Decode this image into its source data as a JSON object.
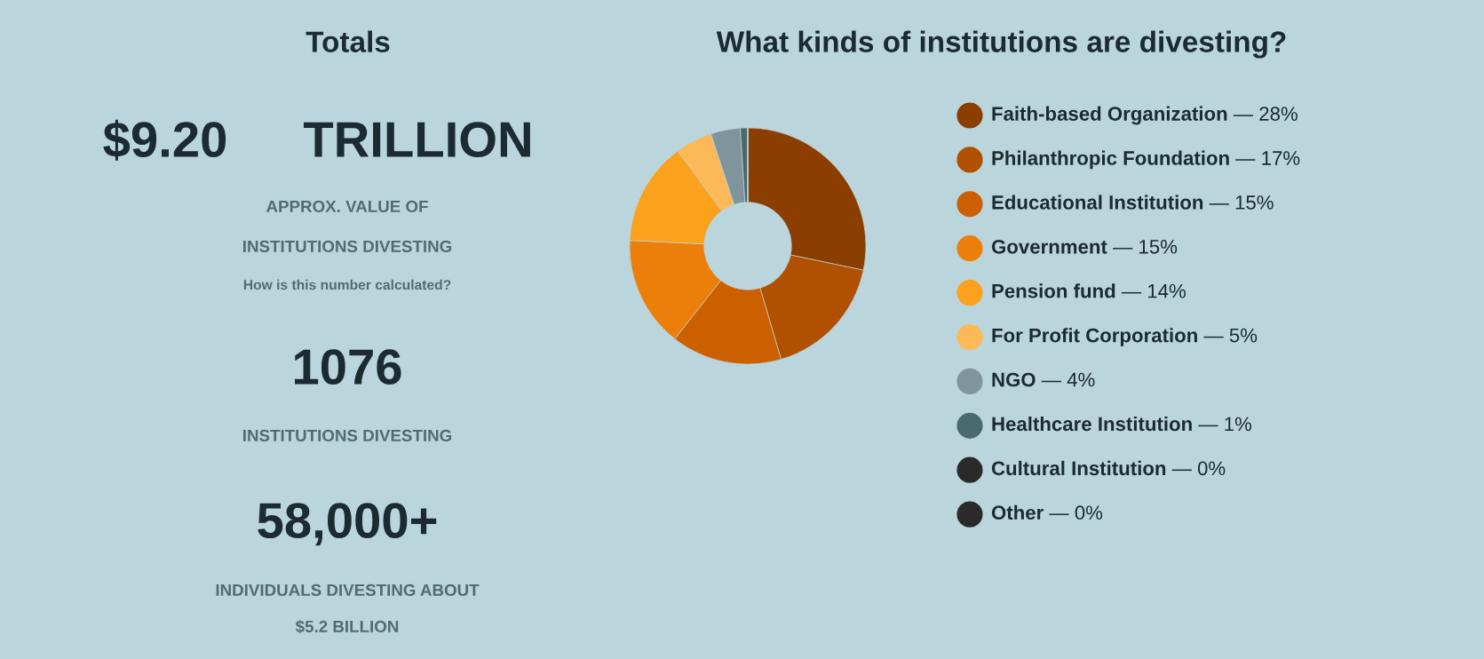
{
  "chart_data": [
    {
      "type": "other",
      "title": "Totals",
      "annotations": [
        "$9.20",
        "TRILLION",
        "APPROX. VALUE OF",
        "INSTITUTIONS DIVESTING",
        "How is this number calculated?",
        "1076",
        "INSTITUTIONS DIVESTING",
        "58,000+",
        "INDIVIDUALS DIVESTING ABOUT",
        "$5.2 BILLION"
      ]
    },
    {
      "type": "donut",
      "title": "What kinds of institutions are divesting?",
      "categories": [
        "Faith-based Organization",
        "Philanthropic Foundation",
        "Educational Institution",
        "Government",
        "Pension fund",
        "For Profit Corporation",
        "NGO",
        "Healthcare Institution",
        "Cultural Institution",
        "Other"
      ],
      "values": [
        28,
        17,
        15,
        15,
        14,
        5,
        4,
        1,
        0,
        0
      ],
      "value_labels": [
        "— 28%",
        "— 17%",
        "— 15%",
        "— 15%",
        "— 14%",
        "— 5%",
        "— 4%",
        "— 1%",
        "— 0%",
        "— 0%"
      ],
      "colors": [
        "#8b3e00",
        "#b05000",
        "#cc5f00",
        "#ec7f09",
        "#fca11b",
        "#fdb957",
        "#7f959b",
        "#4a6a6e",
        "#2a2a2a",
        "#2a2a2a"
      ],
      "legend": "right"
    }
  ]
}
